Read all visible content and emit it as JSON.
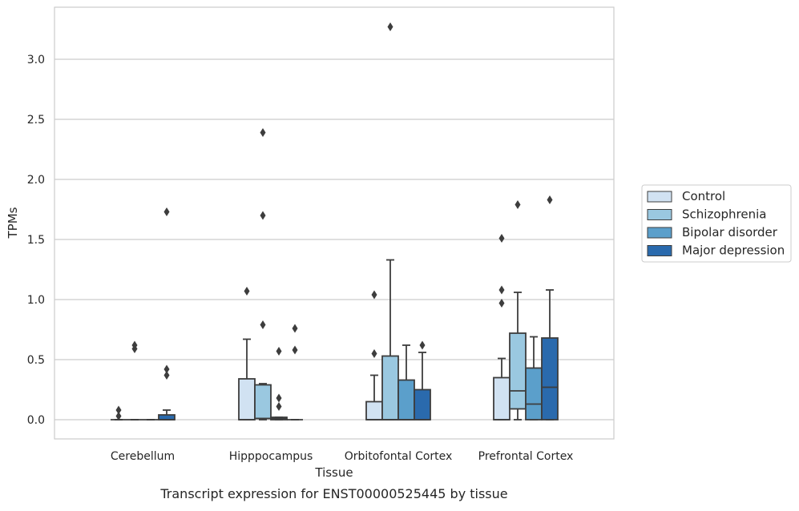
{
  "chart_data": {
    "type": "box",
    "xlabel": "Tissue",
    "ylabel": "TPMs",
    "caption": "Transcript expression for ENST00000525445 by tissue",
    "categories": [
      "Cerebellum",
      "Hipppocampus",
      "Orbitofontal Cortex",
      "Prefrontal Cortex"
    ],
    "ylim": [
      -0.16,
      3.44
    ],
    "yticks": [
      0.0,
      0.5,
      1.0,
      1.5,
      2.0,
      2.5,
      3.0
    ],
    "ytick_labels": [
      "0.0",
      "0.5",
      "1.0",
      "1.5",
      "2.0",
      "2.5",
      "3.0"
    ],
    "grid": "horizontal",
    "legend_position": "right",
    "series": [
      {
        "name": "Control",
        "color": "#d1e2f2",
        "boxes": [
          {
            "q1": 0.0,
            "median": 0.0,
            "q3": 0.0,
            "whisker_low": 0.0,
            "whisker_high": 0.0,
            "outliers": [
              0.03,
              0.08
            ]
          },
          {
            "q1": 0.0,
            "median": 0.0,
            "q3": 0.34,
            "whisker_low": 0.0,
            "whisker_high": 0.67,
            "outliers": [
              1.07
            ]
          },
          {
            "q1": 0.0,
            "median": 0.0,
            "q3": 0.15,
            "whisker_low": 0.0,
            "whisker_high": 0.37,
            "outliers": [
              0.55,
              1.04
            ]
          },
          {
            "q1": 0.0,
            "median": 0.0,
            "q3": 0.35,
            "whisker_low": 0.0,
            "whisker_high": 0.51,
            "outliers": [
              0.97,
              1.08,
              1.51
            ]
          }
        ]
      },
      {
        "name": "Schizophrenia",
        "color": "#9ac8e0",
        "boxes": [
          {
            "q1": 0.0,
            "median": 0.0,
            "q3": 0.0,
            "whisker_low": 0.0,
            "whisker_high": 0.0,
            "outliers": [
              0.59,
              0.62
            ]
          },
          {
            "q1": 0.01,
            "median": 0.01,
            "q3": 0.29,
            "whisker_low": 0.0,
            "whisker_high": 0.3,
            "outliers": [
              0.79,
              1.7,
              2.39
            ]
          },
          {
            "q1": 0.0,
            "median": 0.0,
            "q3": 0.53,
            "whisker_low": 0.0,
            "whisker_high": 1.33,
            "outliers": [
              3.27
            ]
          },
          {
            "q1": 0.09,
            "median": 0.24,
            "q3": 0.72,
            "whisker_low": 0.0,
            "whisker_high": 1.06,
            "outliers": [
              1.79
            ]
          }
        ]
      },
      {
        "name": "Bipolar disorder",
        "color": "#5b9fcb",
        "boxes": [
          {
            "q1": 0.0,
            "median": 0.0,
            "q3": 0.0,
            "whisker_low": 0.0,
            "whisker_high": 0.0,
            "outliers": []
          },
          {
            "q1": 0.0,
            "median": 0.01,
            "q3": 0.02,
            "whisker_low": 0.0,
            "whisker_high": 0.02,
            "outliers": [
              0.11,
              0.18,
              0.57
            ]
          },
          {
            "q1": 0.0,
            "median": 0.0,
            "q3": 0.33,
            "whisker_low": 0.0,
            "whisker_high": 0.62,
            "outliers": []
          },
          {
            "q1": 0.0,
            "median": 0.13,
            "q3": 0.43,
            "whisker_low": 0.0,
            "whisker_high": 0.69,
            "outliers": []
          }
        ]
      },
      {
        "name": "Major depression",
        "color": "#2a6aad",
        "boxes": [
          {
            "q1": 0.0,
            "median": 0.0,
            "q3": 0.04,
            "whisker_low": 0.0,
            "whisker_high": 0.08,
            "outliers": [
              0.37,
              0.42,
              1.73
            ]
          },
          {
            "q1": 0.0,
            "median": 0.0,
            "q3": 0.0,
            "whisker_low": 0.0,
            "whisker_high": 0.0,
            "outliers": [
              0.58,
              0.76
            ]
          },
          {
            "q1": 0.0,
            "median": 0.0,
            "q3": 0.25,
            "whisker_low": 0.0,
            "whisker_high": 0.56,
            "outliers": [
              0.62
            ]
          },
          {
            "q1": 0.0,
            "median": 0.27,
            "q3": 0.68,
            "whisker_low": 0.0,
            "whisker_high": 1.08,
            "outliers": [
              1.83
            ]
          }
        ]
      }
    ]
  }
}
